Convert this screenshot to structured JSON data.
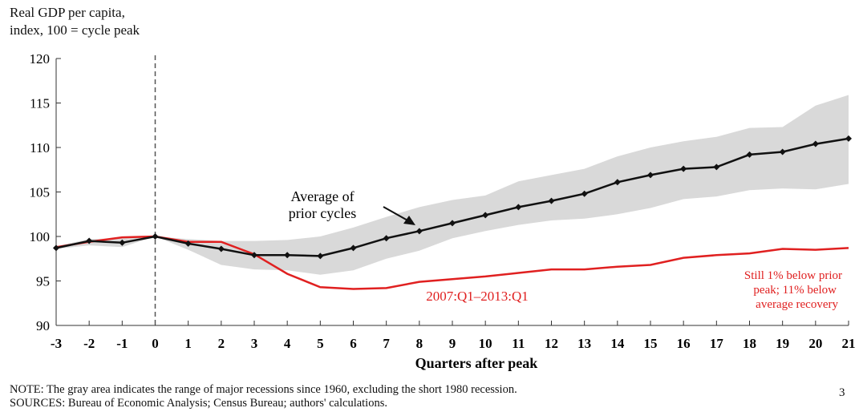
{
  "ylabel_lines": [
    "Real GDP per capita,",
    "index, 100  = cycle peak"
  ],
  "note": "NOTE: The gray area indicates the range of major recessions since 1960, excluding the short 1980 recession.",
  "sources": "SOURCES: Bureau of Economic Analysis; Census Bureau; authors' calculations.",
  "page_number": "3",
  "colors": {
    "average": "#111111",
    "current": "#e02020",
    "range": "#d9d9d9",
    "annotation_red": "#e02020"
  },
  "chart_data": {
    "type": "line",
    "xlabel": "Quarters after peak",
    "ylabel": "Real GDP per capita, index, 100  = cycle peak",
    "x": [
      -3,
      -2,
      -1,
      0,
      1,
      2,
      3,
      4,
      5,
      6,
      7,
      8,
      9,
      10,
      11,
      12,
      13,
      14,
      15,
      16,
      17,
      18,
      19,
      20,
      21
    ],
    "x_tick_labels": [
      "-3",
      "-2",
      "-1",
      "0",
      "1",
      "2",
      "3",
      "4",
      "5",
      "6",
      "7",
      "8",
      "9",
      "10",
      "11",
      "12",
      "13",
      "14",
      "15",
      "16",
      "17",
      "18",
      "19",
      "20",
      "21"
    ],
    "ylim": [
      90,
      120
    ],
    "y_ticks": [
      90,
      95,
      100,
      105,
      110,
      115,
      120
    ],
    "grid": false,
    "reference_line_x": 0,
    "series": [
      {
        "name": "Average of prior cycles",
        "style": "line-with-markers",
        "values": [
          98.7,
          99.5,
          99.3,
          100.0,
          99.2,
          98.6,
          97.9,
          97.9,
          97.8,
          98.7,
          99.8,
          100.6,
          101.5,
          102.4,
          103.3,
          104.0,
          104.8,
          106.1,
          106.9,
          107.6,
          107.8,
          109.2,
          109.5,
          110.4,
          111.0
        ]
      },
      {
        "name": "2007:Q1–2013:Q1",
        "style": "line",
        "values": [
          98.8,
          99.4,
          99.9,
          100.0,
          99.4,
          99.4,
          98.0,
          95.8,
          94.3,
          94.1,
          94.2,
          94.9,
          95.2,
          95.5,
          95.9,
          96.3,
          96.3,
          96.6,
          96.8,
          97.6,
          97.9,
          98.1,
          98.6,
          98.5,
          98.7
        ]
      }
    ],
    "range_band": {
      "lower": [
        98.6,
        99.0,
        98.8,
        100.0,
        98.5,
        96.8,
        96.3,
        96.2,
        95.7,
        96.2,
        97.5,
        98.4,
        99.8,
        100.6,
        101.3,
        101.8,
        102.0,
        102.5,
        103.2,
        104.2,
        104.5,
        105.2,
        105.4,
        105.3,
        105.9
      ],
      "upper": [
        98.9,
        99.7,
        99.8,
        100.0,
        99.7,
        99.5,
        99.5,
        99.6,
        100.0,
        101.0,
        102.2,
        103.3,
        104.1,
        104.6,
        106.2,
        106.9,
        107.6,
        109.0,
        110.0,
        110.7,
        111.2,
        112.2,
        112.3,
        114.7,
        115.9
      ]
    },
    "annotations": {
      "average_label_line1": "Average of",
      "average_label_line2": "prior cycles",
      "current_label": "2007:Q1–2013:Q1",
      "still_below_line1": "Still 1% below prior",
      "still_below_line2": "peak; 11% below",
      "still_below_line3": "average recovery"
    }
  }
}
